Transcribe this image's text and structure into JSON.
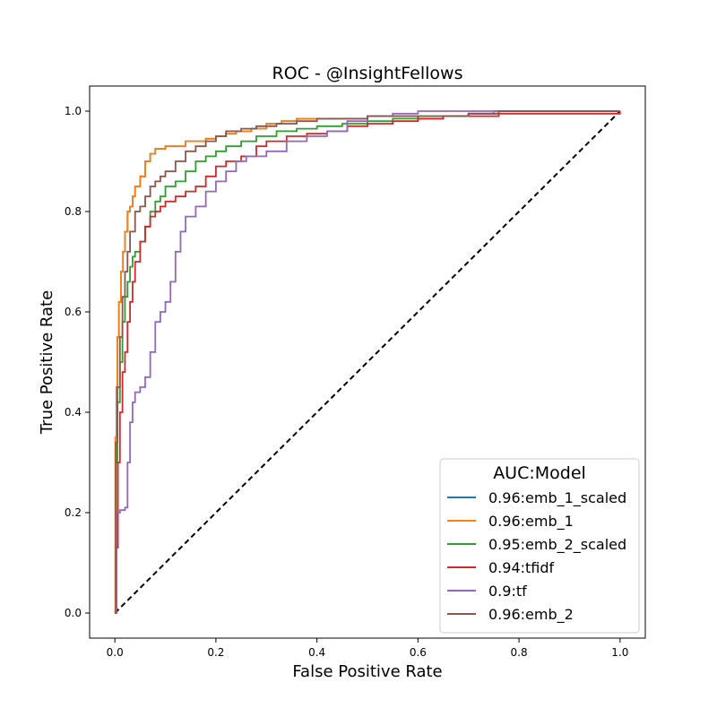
{
  "chart_data": {
    "type": "line",
    "title": "ROC - @InsightFellows",
    "xlabel": "False Positive Rate",
    "ylabel": "True Positive Rate",
    "xlim": [
      -0.05,
      1.05
    ],
    "ylim": [
      -0.05,
      1.05
    ],
    "xticks": [
      0.0,
      0.2,
      0.4,
      0.6,
      0.8,
      1.0
    ],
    "yticks": [
      0.0,
      0.2,
      0.4,
      0.6,
      0.8,
      1.0
    ],
    "tick_labels_x": [
      "0.0",
      "0.2",
      "0.4",
      "0.6",
      "0.8",
      "1.0"
    ],
    "tick_labels_y": [
      "0.0",
      "0.2",
      "0.4",
      "0.6",
      "0.8",
      "1.0"
    ],
    "grid": false,
    "legend": {
      "title": "AUC:Model",
      "placement": "lower-right"
    },
    "series": [
      {
        "name": "0.96:emb_1_scaled",
        "color": "#1f77b4",
        "x": [
          0,
          0.001,
          0.003,
          0.005,
          0.008,
          0.012,
          0.016,
          0.02,
          0.025,
          0.03,
          0.035,
          0.04,
          0.05,
          0.06,
          0.07,
          0.08,
          0.09,
          0.1,
          0.12,
          0.14,
          0.16,
          0.18,
          0.2,
          0.22,
          0.24,
          0.27,
          0.3,
          0.33,
          0.36,
          0.4,
          0.45,
          0.5,
          0.55,
          0.6,
          0.65,
          0.7,
          0.75,
          0.78,
          1.0
        ],
        "y": [
          0,
          0.35,
          0.45,
          0.55,
          0.62,
          0.68,
          0.72,
          0.76,
          0.8,
          0.81,
          0.83,
          0.85,
          0.87,
          0.9,
          0.915,
          0.925,
          0.925,
          0.93,
          0.93,
          0.94,
          0.94,
          0.945,
          0.95,
          0.955,
          0.96,
          0.965,
          0.975,
          0.98,
          0.985,
          0.985,
          0.985,
          0.99,
          0.99,
          0.985,
          0.99,
          0.995,
          1.0,
          1.0,
          1.0
        ]
      },
      {
        "name": "0.96:emb_1",
        "color": "#ff7f0e",
        "x": [
          0,
          0.001,
          0.003,
          0.005,
          0.008,
          0.012,
          0.016,
          0.02,
          0.025,
          0.03,
          0.035,
          0.04,
          0.05,
          0.06,
          0.07,
          0.08,
          0.09,
          0.1,
          0.12,
          0.14,
          0.16,
          0.18,
          0.2,
          0.22,
          0.24,
          0.27,
          0.3,
          0.33,
          0.36,
          0.4,
          0.45,
          0.5,
          0.55,
          0.6,
          0.65,
          0.7,
          0.75,
          0.78,
          1.0
        ],
        "y": [
          0,
          0.35,
          0.45,
          0.55,
          0.62,
          0.68,
          0.72,
          0.76,
          0.8,
          0.81,
          0.83,
          0.85,
          0.87,
          0.9,
          0.915,
          0.925,
          0.925,
          0.93,
          0.93,
          0.94,
          0.94,
          0.945,
          0.95,
          0.955,
          0.96,
          0.965,
          0.975,
          0.98,
          0.985,
          0.985,
          0.985,
          0.99,
          0.99,
          0.985,
          0.99,
          0.995,
          1.0,
          1.0,
          1.0
        ]
      },
      {
        "name": "0.95:emb_2_scaled",
        "color": "#2ca02c",
        "x": [
          0,
          0.002,
          0.005,
          0.01,
          0.015,
          0.02,
          0.025,
          0.03,
          0.035,
          0.04,
          0.05,
          0.06,
          0.07,
          0.08,
          0.09,
          0.1,
          0.12,
          0.14,
          0.16,
          0.18,
          0.2,
          0.22,
          0.25,
          0.28,
          0.32,
          0.36,
          0.4,
          0.45,
          0.5,
          0.55,
          0.6,
          0.65,
          0.7,
          0.76,
          1.0
        ],
        "y": [
          0,
          0.3,
          0.42,
          0.5,
          0.58,
          0.63,
          0.66,
          0.69,
          0.71,
          0.72,
          0.74,
          0.77,
          0.8,
          0.82,
          0.83,
          0.85,
          0.86,
          0.88,
          0.9,
          0.91,
          0.92,
          0.93,
          0.94,
          0.95,
          0.96,
          0.965,
          0.97,
          0.975,
          0.98,
          0.985,
          0.99,
          0.99,
          0.995,
          1.0,
          1.0
        ]
      },
      {
        "name": "0.94:tfidf",
        "color": "#d62728",
        "x": [
          0,
          0.003,
          0.006,
          0.01,
          0.015,
          0.02,
          0.025,
          0.03,
          0.035,
          0.04,
          0.05,
          0.06,
          0.07,
          0.08,
          0.09,
          0.1,
          0.12,
          0.14,
          0.16,
          0.18,
          0.2,
          0.22,
          0.25,
          0.28,
          0.3,
          0.34,
          0.38,
          0.42,
          0.46,
          0.5,
          0.55,
          0.6,
          0.65,
          0.7,
          0.76,
          1.0
        ],
        "y": [
          0,
          0.13,
          0.3,
          0.4,
          0.48,
          0.52,
          0.58,
          0.62,
          0.66,
          0.7,
          0.74,
          0.77,
          0.79,
          0.8,
          0.81,
          0.82,
          0.83,
          0.84,
          0.85,
          0.87,
          0.89,
          0.9,
          0.91,
          0.93,
          0.94,
          0.95,
          0.955,
          0.96,
          0.97,
          0.975,
          0.98,
          0.985,
          0.99,
          0.99,
          0.995,
          1.0
        ]
      },
      {
        "name": "0.9:tf",
        "color": "#9467bd",
        "x": [
          0,
          0.003,
          0.01,
          0.02,
          0.025,
          0.03,
          0.035,
          0.04,
          0.05,
          0.06,
          0.07,
          0.08,
          0.09,
          0.1,
          0.11,
          0.12,
          0.13,
          0.14,
          0.16,
          0.18,
          0.2,
          0.22,
          0.24,
          0.26,
          0.3,
          0.34,
          0.38,
          0.42,
          0.46,
          0.5,
          0.55,
          0.6,
          0.65,
          0.7,
          0.76,
          1.0
        ],
        "y": [
          0,
          0.2,
          0.205,
          0.21,
          0.3,
          0.38,
          0.42,
          0.44,
          0.45,
          0.47,
          0.52,
          0.58,
          0.6,
          0.62,
          0.66,
          0.72,
          0.76,
          0.79,
          0.81,
          0.84,
          0.86,
          0.88,
          0.9,
          0.91,
          0.92,
          0.94,
          0.95,
          0.96,
          0.98,
          0.99,
          0.995,
          1.0,
          1.0,
          1.0,
          1.0,
          1.0
        ]
      },
      {
        "name": "0.96:emb_2",
        "color": "#8c564b",
        "x": [
          0,
          0.002,
          0.005,
          0.01,
          0.015,
          0.02,
          0.025,
          0.03,
          0.04,
          0.05,
          0.06,
          0.07,
          0.08,
          0.09,
          0.1,
          0.12,
          0.14,
          0.16,
          0.18,
          0.2,
          0.22,
          0.25,
          0.28,
          0.32,
          0.36,
          0.4,
          0.45,
          0.5,
          0.55,
          0.6,
          0.65,
          0.7,
          0.76,
          1.0
        ],
        "y": [
          0,
          0.34,
          0.45,
          0.55,
          0.63,
          0.68,
          0.72,
          0.76,
          0.8,
          0.81,
          0.83,
          0.85,
          0.86,
          0.87,
          0.88,
          0.9,
          0.92,
          0.93,
          0.94,
          0.95,
          0.96,
          0.965,
          0.97,
          0.975,
          0.98,
          0.985,
          0.985,
          0.99,
          0.99,
          0.99,
          0.99,
          0.995,
          1.0,
          1.0
        ]
      }
    ],
    "reference_line": {
      "x": [
        0,
        1
      ],
      "y": [
        0,
        1
      ],
      "color": "#000000",
      "style": "dashed"
    }
  }
}
